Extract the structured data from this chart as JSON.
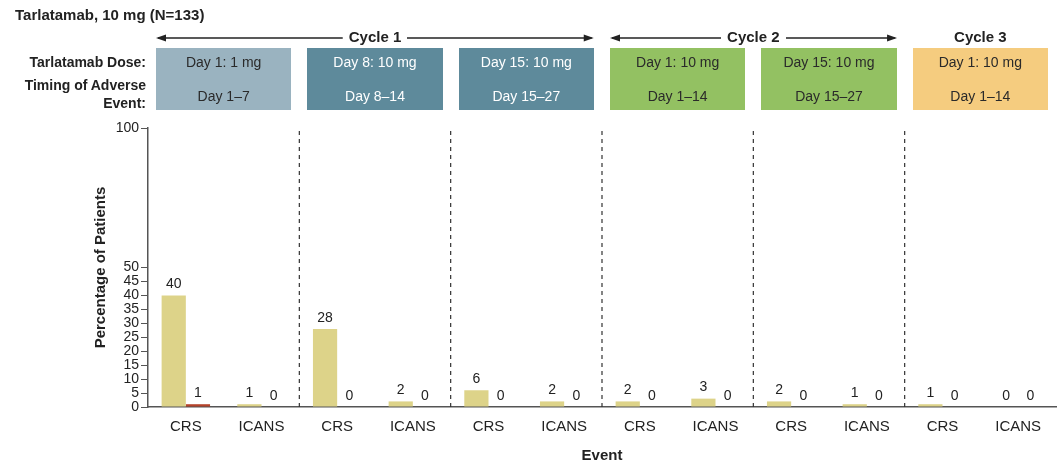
{
  "chart_data": {
    "type": "bar",
    "title": "Tarlatamab, 10 mg (N=133)",
    "xlabel": "Event",
    "ylabel": "Percentage of Patients",
    "categories": [
      "CRS",
      "ICANS",
      "CRS",
      "ICANS",
      "CRS",
      "ICANS",
      "CRS",
      "ICANS",
      "CRS",
      "ICANS",
      "CRS",
      "ICANS"
    ],
    "series": [
      {
        "color": "#ddd389",
        "values": [
          40,
          1,
          28,
          2,
          6,
          2,
          2,
          3,
          2,
          1,
          1,
          0
        ]
      },
      {
        "color": "#b5432a",
        "values": [
          1,
          0,
          0,
          0,
          0,
          0,
          0,
          0,
          0,
          0,
          0,
          0
        ]
      }
    ],
    "ylim": [
      0,
      100
    ],
    "yticks": [
      0,
      5,
      10,
      15,
      20,
      25,
      30,
      35,
      40,
      45,
      50,
      100
    ],
    "grid": "x",
    "legend": false,
    "data_labels": true,
    "annotations": [
      "Tarlatamab Dose:",
      "Timing of Adverse Event:",
      "Cycle 1",
      "Cycle 2",
      "Cycle 3",
      "Day 1: 1 mg",
      "Day 1–7",
      "Day 8: 10 mg",
      "Day 8–14",
      "Day 15: 10 mg",
      "Day 15–27",
      "Day 1: 10 mg",
      "Day 1–14",
      "Day 15: 10 mg",
      "Day 15–27",
      "Day 1: 10 mg",
      "Day 1–14"
    ]
  }
}
